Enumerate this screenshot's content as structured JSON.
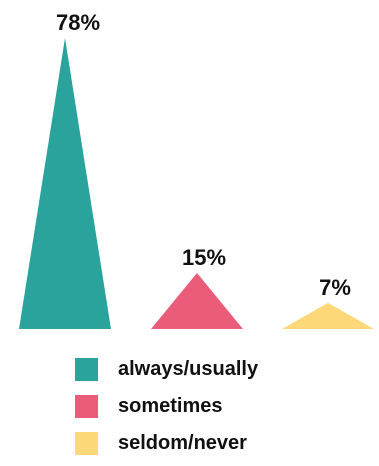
{
  "chart_data": {
    "type": "bar",
    "shape": "triangle",
    "title": "",
    "xlabel": "",
    "ylabel": "",
    "ylim": [
      0,
      78
    ],
    "grid": false,
    "legend_position": "bottom",
    "categories": [
      "always/usually",
      "sometimes",
      "seldom/never"
    ],
    "values": [
      78,
      15,
      7
    ],
    "data_labels": [
      "78%",
      "15%",
      "7%"
    ],
    "colors": [
      "#2aa39c",
      "#ea5c7a",
      "#fcd87a"
    ]
  }
}
